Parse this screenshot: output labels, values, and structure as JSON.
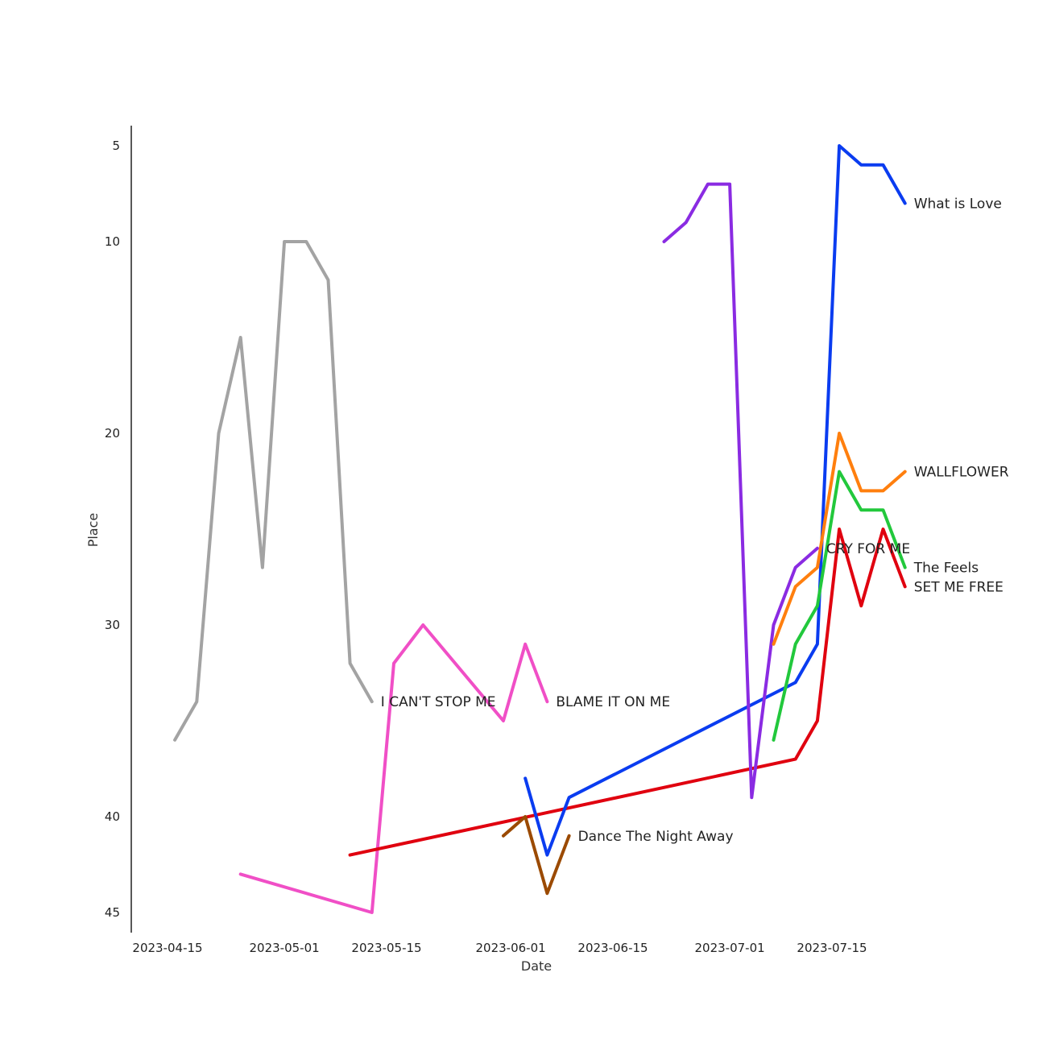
{
  "chart_data": {
    "type": "line",
    "title": "",
    "xlabel": "Date",
    "ylabel": "Place",
    "y_inverted": true,
    "ylim": [
      46,
      4
    ],
    "xlim": [
      "2023-04-11",
      "2023-08-01"
    ],
    "grid": false,
    "legend": "none (labels at line ends)",
    "x_ticks": [
      "2023-04-15",
      "2023-05-01",
      "2023-05-15",
      "2023-06-01",
      "2023-06-15",
      "2023-07-01",
      "2023-07-15"
    ],
    "y_ticks": [
      5,
      10,
      20,
      30,
      40,
      45
    ],
    "series": [
      {
        "name": "I CAN'T STOP ME",
        "color": "#a3a3a3",
        "points": [
          {
            "x": "2023-04-16",
            "y": 36
          },
          {
            "x": "2023-04-19",
            "y": 34
          },
          {
            "x": "2023-04-22",
            "y": 20
          },
          {
            "x": "2023-04-25",
            "y": 15
          },
          {
            "x": "2023-04-28",
            "y": 27
          },
          {
            "x": "2023-05-01",
            "y": 10
          },
          {
            "x": "2023-05-04",
            "y": 10
          },
          {
            "x": "2023-05-07",
            "y": 12
          },
          {
            "x": "2023-05-10",
            "y": 32
          },
          {
            "x": "2023-05-13",
            "y": 34
          }
        ]
      },
      {
        "name": "BLAME IT ON ME",
        "color": "#f04fc6",
        "points": [
          {
            "x": "2023-04-25",
            "y": 43
          },
          {
            "x": "2023-05-13",
            "y": 45
          },
          {
            "x": "2023-05-16",
            "y": 32
          },
          {
            "x": "2023-05-20",
            "y": 30
          },
          {
            "x": "2023-05-31",
            "y": 35
          },
          {
            "x": "2023-06-03",
            "y": 31
          },
          {
            "x": "2023-06-06",
            "y": 34
          }
        ]
      },
      {
        "name": "SET ME FREE",
        "color": "#e0000f",
        "points": [
          {
            "x": "2023-05-10",
            "y": 42
          },
          {
            "x": "2023-07-10",
            "y": 37
          },
          {
            "x": "2023-07-13",
            "y": 35
          },
          {
            "x": "2023-07-16",
            "y": 25
          },
          {
            "x": "2023-07-19",
            "y": 29
          },
          {
            "x": "2023-07-22",
            "y": 25
          },
          {
            "x": "2023-07-25",
            "y": 28
          }
        ]
      },
      {
        "name": "Dance The Night Away",
        "color": "#9b4a00",
        "points": [
          {
            "x": "2023-05-31",
            "y": 41
          },
          {
            "x": "2023-06-03",
            "y": 40
          },
          {
            "x": "2023-06-06",
            "y": 44
          },
          {
            "x": "2023-06-09",
            "y": 41
          }
        ]
      },
      {
        "name": "What is Love",
        "color": "#0a3cf0",
        "points": [
          {
            "x": "2023-06-03",
            "y": 38
          },
          {
            "x": "2023-06-06",
            "y": 42
          },
          {
            "x": "2023-06-09",
            "y": 39
          },
          {
            "x": "2023-07-10",
            "y": 33
          },
          {
            "x": "2023-07-13",
            "y": 31
          },
          {
            "x": "2023-07-16",
            "y": 5
          },
          {
            "x": "2023-07-19",
            "y": 6
          },
          {
            "x": "2023-07-22",
            "y": 6
          },
          {
            "x": "2023-07-25",
            "y": 8
          }
        ]
      },
      {
        "name": "CRY FOR ME",
        "color": "#8a2be2",
        "points": [
          {
            "x": "2023-06-22",
            "y": 10
          },
          {
            "x": "2023-06-25",
            "y": 9
          },
          {
            "x": "2023-06-28",
            "y": 7
          },
          {
            "x": "2023-07-01",
            "y": 7
          },
          {
            "x": "2023-07-04",
            "y": 39
          },
          {
            "x": "2023-07-07",
            "y": 30
          },
          {
            "x": "2023-07-10",
            "y": 27
          },
          {
            "x": "2023-07-13",
            "y": 26
          }
        ]
      },
      {
        "name": "WALLFLOWER",
        "color": "#ff7f0e",
        "points": [
          {
            "x": "2023-07-07",
            "y": 31
          },
          {
            "x": "2023-07-10",
            "y": 28
          },
          {
            "x": "2023-07-13",
            "y": 27
          },
          {
            "x": "2023-07-16",
            "y": 20
          },
          {
            "x": "2023-07-19",
            "y": 23
          },
          {
            "x": "2023-07-22",
            "y": 23
          },
          {
            "x": "2023-07-25",
            "y": 22
          }
        ]
      },
      {
        "name": "The Feels",
        "color": "#22c83c",
        "points": [
          {
            "x": "2023-07-07",
            "y": 36
          },
          {
            "x": "2023-07-10",
            "y": 31
          },
          {
            "x": "2023-07-13",
            "y": 29
          },
          {
            "x": "2023-07-16",
            "y": 22
          },
          {
            "x": "2023-07-19",
            "y": 24
          },
          {
            "x": "2023-07-22",
            "y": 24
          },
          {
            "x": "2023-07-25",
            "y": 27
          }
        ]
      }
    ]
  }
}
